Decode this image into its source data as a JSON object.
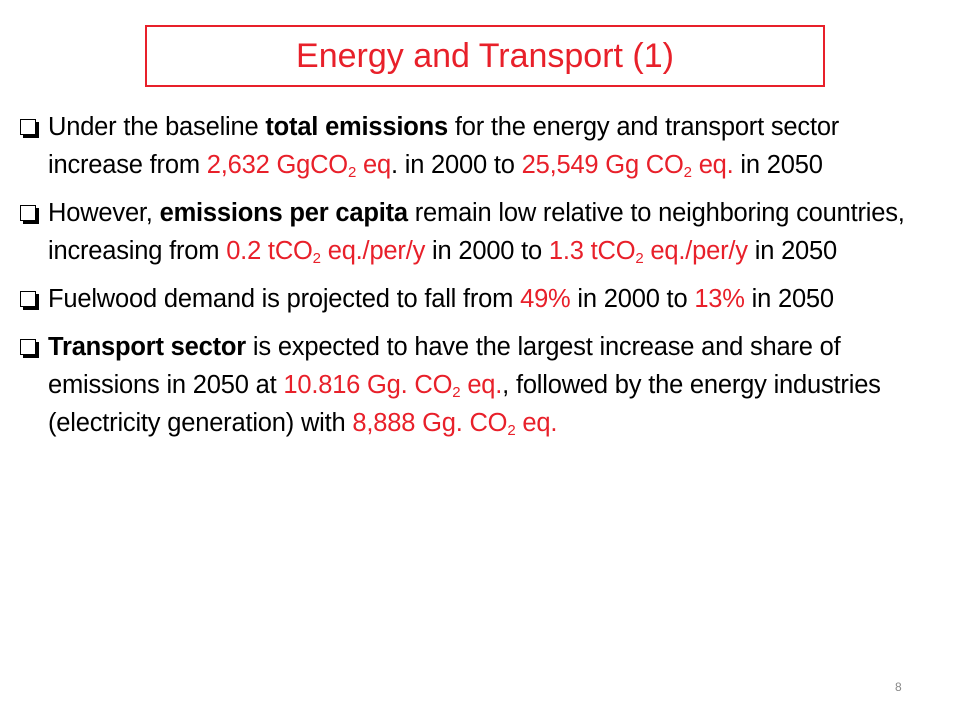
{
  "title": "Energy and Transport (1)",
  "bullets": [
    [
      "Under the baseline ",
      "total emissions",
      " for the energy and transport sector increase from ",
      "2,632  GgCO",
      "2",
      " eq",
      ". in 2000 to ",
      "25,549 Gg CO",
      "2",
      " eq.",
      " in 2050"
    ],
    [
      "However, ",
      "emissions per capita",
      " remain low relative to neighboring countries, increasing from ",
      "0.2 tCO",
      "2",
      " eq./per/y",
      " in 2000 to ",
      "1.3 tCO",
      "2",
      " eq./per/y",
      " in 2050"
    ],
    [
      "Fuelwood demand is projected to fall from ",
      "49%",
      " in 2000 to ",
      "13%",
      " in 2050"
    ],
    [
      "Transport sector",
      " is expected to have the largest increase and share of emissions in 2050 at ",
      "10.816 Gg. CO",
      "2",
      " eq.",
      ", followed by the energy industries (electricity generation) with ",
      "8,888 Gg. CO",
      "2",
      " eq."
    ]
  ],
  "page_number": "8"
}
